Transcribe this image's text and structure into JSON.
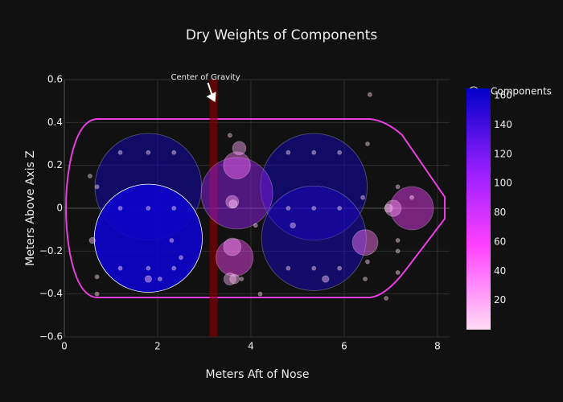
{
  "chart_data": {
    "type": "bubble",
    "title": "Dry Weights of Components",
    "x_label": "Meters Aft of Nose",
    "y_label": "Meters Above Axis Z",
    "xlim": [
      0,
      8.26
    ],
    "ylim": [
      -0.6,
      0.6
    ],
    "xticks": [
      0,
      2,
      4,
      6,
      8
    ],
    "yticks": [
      {
        "value": -0.6,
        "label": "−0.6"
      },
      {
        "value": -0.4,
        "label": "−0.4"
      },
      {
        "value": -0.2,
        "label": "−0.2"
      },
      0,
      0.2,
      0.4,
      0.6
    ],
    "grid": true,
    "clim": [
      0,
      165
    ],
    "colorbar_ticks": [
      20,
      40,
      60,
      80,
      100,
      120,
      140,
      160
    ],
    "colorscale": [
      [
        0,
        "#ffdcf5"
      ],
      [
        0.35,
        "#ff40ff"
      ],
      [
        0.65,
        "#9a1fff"
      ],
      [
        1,
        "#0000c8"
      ]
    ],
    "center_of_gravity": {
      "label": "Center of Gravity",
      "x": 3.2
    },
    "series": [
      {
        "name": "Components",
        "x": [
          1.8,
          5.35,
          5.35,
          1.8,
          3.7,
          3.7,
          3.75,
          3.65,
          3.6,
          3.55,
          3.65,
          3.6,
          3.62,
          6.45,
          7.45,
          7.05,
          6.95,
          1.8,
          5.6,
          4.9,
          0.6,
          3.55,
          1.2,
          1.8,
          2.35,
          1.2,
          1.8,
          2.35,
          1.2,
          1.8,
          2.35,
          4.8,
          5.35,
          5.9,
          4.8,
          5.35,
          5.9,
          4.8,
          5.35,
          5.9,
          0.55,
          0.7,
          0.7,
          6.5,
          6.55,
          7.15,
          7.15,
          7.15,
          7.45,
          7.15,
          6.9,
          6.5,
          6.45,
          2.05,
          2.5,
          0.7,
          4.2,
          3.8,
          2.3,
          4.1,
          6.4
        ],
        "values": [
          0.1,
          0.1,
          -0.14,
          -0.14,
          0.07,
          0.2,
          0.28,
          -0.23,
          -0.18,
          -0.33,
          -0.33,
          0.03,
          0.02,
          -0.16,
          0,
          0,
          0,
          -0.33,
          -0.33,
          -0.08,
          -0.15,
          0.34,
          0.26,
          0.26,
          0.26,
          0,
          0,
          0,
          -0.28,
          -0.28,
          -0.28,
          0.26,
          0.26,
          0.26,
          0,
          0,
          0,
          -0.28,
          -0.28,
          -0.28,
          0.15,
          0.1,
          -0.32,
          0.3,
          0.53,
          0.1,
          -0.15,
          -0.2,
          0.05,
          -0.3,
          -0.42,
          -0.25,
          -0.33,
          -0.33,
          -0.23,
          -0.4,
          -0.4,
          -0.33,
          -0.15,
          -0.08,
          0.05
        ],
        "weights": [
          158,
          158,
          155,
          160,
          106,
          40,
          20,
          55,
          26,
          18,
          14,
          19,
          12,
          38,
          64,
          24,
          12,
          10,
          10,
          8,
          9,
          6,
          5,
          5,
          5,
          5,
          5,
          5,
          5,
          5,
          5,
          5,
          5,
          5,
          5,
          5,
          5,
          5,
          5,
          5,
          5,
          5,
          5,
          5,
          5,
          5,
          5,
          5,
          5,
          5,
          5,
          5,
          5,
          5,
          5,
          5,
          5,
          5,
          5,
          5,
          5
        ]
      }
    ]
  }
}
